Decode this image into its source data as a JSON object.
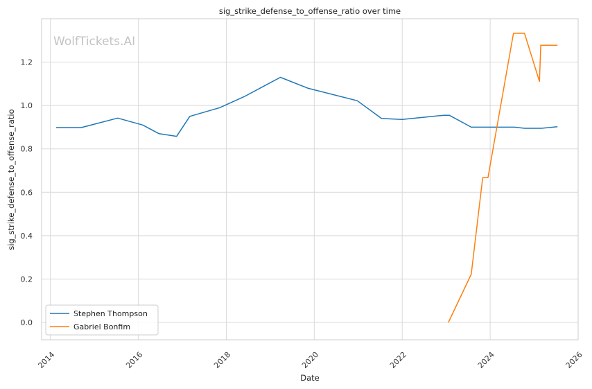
{
  "chart_data": {
    "type": "line",
    "title": "sig_strike_defense_to_offense_ratio over time",
    "xlabel": "Date",
    "ylabel": "sig_strike_defense_to_offense_ratio",
    "watermark": "WolfTickets.AI",
    "xlim": [
      2013.8,
      2026.0
    ],
    "ylim": [
      -0.08,
      1.4
    ],
    "x_ticks": [
      2014,
      2016,
      2018,
      2020,
      2022,
      2024,
      2026
    ],
    "x_tick_labels": [
      "2014",
      "2016",
      "2018",
      "2020",
      "2022",
      "2024",
      "2026"
    ],
    "y_ticks": [
      0.0,
      0.2,
      0.4,
      0.6,
      0.8,
      1.0,
      1.2
    ],
    "y_tick_labels": [
      "0.0",
      "0.2",
      "0.4",
      "0.6",
      "0.8",
      "1.0",
      "1.2"
    ],
    "grid": true,
    "legend_position": "lower-left",
    "series": [
      {
        "name": "Stephen Thompson",
        "color": "#1f77b4",
        "points": [
          [
            2014.13,
            0.898
          ],
          [
            2014.7,
            0.898
          ],
          [
            2015.53,
            0.942
          ],
          [
            2016.1,
            0.91
          ],
          [
            2016.47,
            0.87
          ],
          [
            2016.87,
            0.858
          ],
          [
            2017.17,
            0.95
          ],
          [
            2017.85,
            0.99
          ],
          [
            2018.4,
            1.04
          ],
          [
            2019.23,
            1.13
          ],
          [
            2019.85,
            1.08
          ],
          [
            2020.98,
            1.022
          ],
          [
            2021.53,
            0.94
          ],
          [
            2022.0,
            0.936
          ],
          [
            2022.95,
            0.955
          ],
          [
            2023.07,
            0.955
          ],
          [
            2023.57,
            0.9
          ],
          [
            2024.55,
            0.9
          ],
          [
            2024.78,
            0.895
          ],
          [
            2025.17,
            0.895
          ],
          [
            2025.53,
            0.902
          ]
        ]
      },
      {
        "name": "Gabriel Bonfim",
        "color": "#ff7f0e",
        "points": [
          [
            2023.05,
            0.0
          ],
          [
            2023.57,
            0.222
          ],
          [
            2023.83,
            0.667
          ],
          [
            2023.95,
            0.667
          ],
          [
            2024.53,
            1.333
          ],
          [
            2024.78,
            1.333
          ],
          [
            2025.12,
            1.111
          ],
          [
            2025.15,
            1.278
          ],
          [
            2025.53,
            1.278
          ]
        ]
      }
    ]
  }
}
